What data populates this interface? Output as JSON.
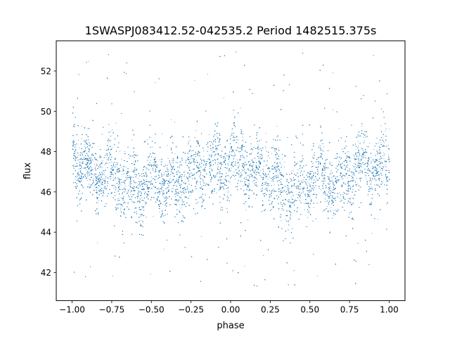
{
  "chart_data": {
    "type": "scatter",
    "title": "1SWASPJ083412.52-042535.2 Period 1482515.375s",
    "xlabel": "phase",
    "ylabel": "flux",
    "xlim": [
      -1.1,
      1.1
    ],
    "ylim": [
      40.6,
      53.5
    ],
    "x_ticks": [
      -1.0,
      -0.75,
      -0.5,
      -0.25,
      0.0,
      0.25,
      0.5,
      0.75,
      1.0
    ],
    "x_tick_labels": [
      "−1.00",
      "−0.75",
      "−0.50",
      "−0.25",
      "0.00",
      "0.25",
      "0.50",
      "0.75",
      "1.00"
    ],
    "y_ticks": [
      42,
      44,
      46,
      48,
      50,
      52
    ],
    "y_tick_labels": [
      "42",
      "44",
      "46",
      "48",
      "50",
      "52"
    ],
    "grid": false,
    "legend": "none",
    "marker_color": "#1f77b4",
    "series": [
      {
        "phase_profile": {
          "phase": [
            0.0,
            0.05,
            0.1,
            0.15,
            0.2,
            0.25,
            0.3,
            0.35,
            0.4,
            0.45,
            0.5,
            0.55,
            0.6,
            0.65,
            0.7,
            0.75,
            0.8,
            0.85,
            0.9,
            0.95,
            1.0
          ],
          "flux_center": [
            47.6,
            47.5,
            47.2,
            47.1,
            47.0,
            46.9,
            46.6,
            46.3,
            46.2,
            46.3,
            46.6,
            46.6,
            46.5,
            46.4,
            46.5,
            46.8,
            47.2,
            47.4,
            47.3,
            47.3,
            47.5
          ],
          "flux_spread": [
            0.9,
            0.85,
            0.8,
            0.8,
            0.8,
            0.85,
            0.85,
            0.9,
            0.95,
            0.9,
            0.8,
            0.75,
            0.8,
            0.85,
            0.85,
            0.85,
            0.8,
            0.8,
            0.8,
            0.85,
            0.9
          ]
        },
        "outlier_flux_range": [
          41.2,
          53.1
        ],
        "points_per_unit_phase": 9000
      }
    ]
  }
}
